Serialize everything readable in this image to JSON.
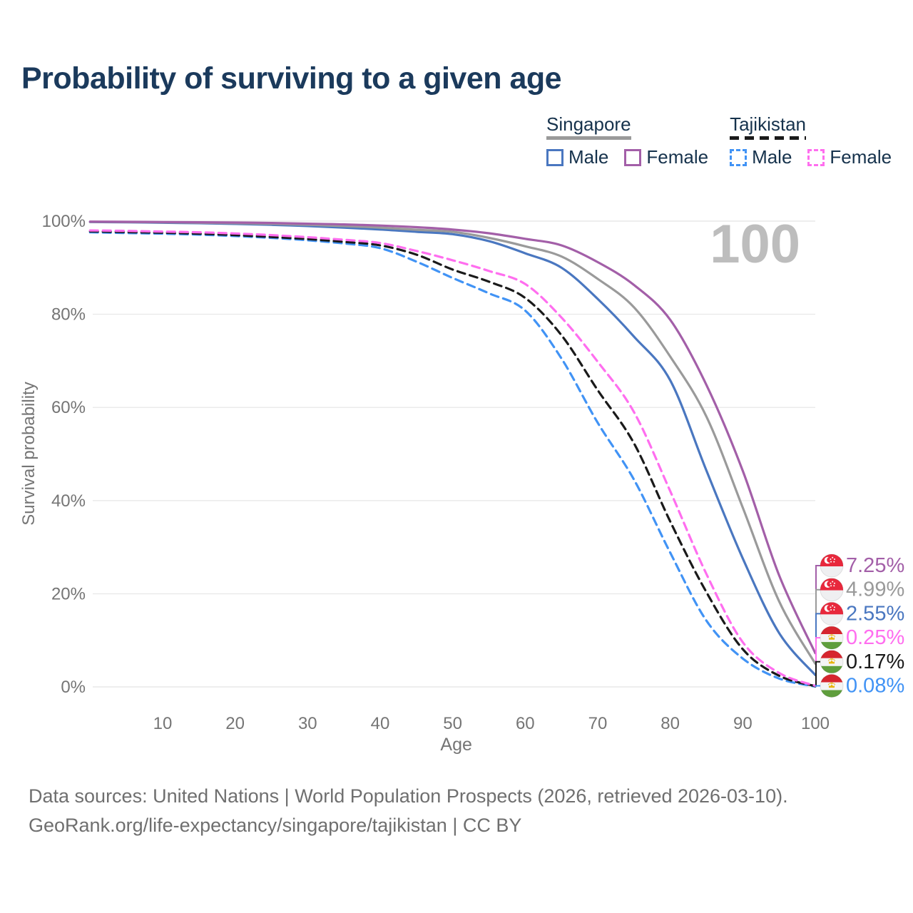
{
  "title": "Probability of surviving to a given age",
  "watermark_age": "100",
  "legend": {
    "groups": [
      {
        "country": "Singapore",
        "line_style": "solid",
        "underline_color": "#9a9a9a",
        "items": [
          {
            "label": "Male",
            "color": "#4a77c0"
          },
          {
            "label": "Female",
            "color": "#a35fa8"
          }
        ]
      },
      {
        "country": "Tajikistan",
        "line_style": "dashed",
        "underline_color": "#1a1a1a",
        "items": [
          {
            "label": "Male",
            "color": "#4193f5"
          },
          {
            "label": "Female",
            "color": "#ff6eef"
          }
        ]
      }
    ]
  },
  "chart_data": {
    "type": "line",
    "title": "Probability of surviving to a given age",
    "xlabel": "Age",
    "ylabel": "Survival probability",
    "xlim": [
      0,
      100
    ],
    "ylim": [
      0,
      100
    ],
    "grid": "horizontal-only",
    "x_ticks": [
      10,
      20,
      30,
      40,
      50,
      60,
      70,
      80,
      90,
      100
    ],
    "y_ticks": [
      "0%",
      "20%",
      "40%",
      "60%",
      "80%",
      "100%"
    ],
    "x": [
      0,
      5,
      10,
      15,
      20,
      25,
      30,
      35,
      40,
      45,
      50,
      55,
      60,
      65,
      70,
      75,
      80,
      85,
      90,
      95,
      100
    ],
    "series": [
      {
        "name": "Singapore Female",
        "country": "Singapore",
        "flag": "sg",
        "style": "solid",
        "color": "#a35fa8",
        "end_label": "7.25%",
        "values": [
          99.9,
          99.85,
          99.8,
          99.75,
          99.7,
          99.6,
          99.45,
          99.3,
          99.05,
          98.7,
          98.2,
          97.4,
          96.2,
          94.8,
          91.2,
          86.3,
          78.8,
          64.8,
          46.4,
          24.0,
          7.25
        ]
      },
      {
        "name": "Singapore Both sexes",
        "country": "Singapore",
        "flag": "sg",
        "style": "solid",
        "color": "#9a9a9a",
        "end_label": "4.99%",
        "values": [
          99.85,
          99.8,
          99.75,
          99.65,
          99.55,
          99.4,
          99.2,
          98.95,
          98.6,
          98.15,
          97.7,
          96.4,
          94.6,
          92.4,
          87.6,
          81.5,
          70.9,
          58.0,
          38.5,
          18.4,
          4.99
        ]
      },
      {
        "name": "Singapore Male",
        "country": "Singapore",
        "flag": "sg",
        "style": "solid",
        "color": "#4a77c0",
        "end_label": "2.55%",
        "values": [
          99.8,
          99.75,
          99.65,
          99.55,
          99.4,
          99.2,
          98.95,
          98.6,
          98.2,
          97.7,
          97.2,
          95.7,
          93.1,
          90.0,
          83.3,
          75.2,
          65.8,
          46.4,
          27.6,
          11.6,
          2.55
        ]
      },
      {
        "name": "Tajikistan Female",
        "country": "Tajikistan",
        "flag": "tj",
        "style": "dashed",
        "color": "#ff6eef",
        "end_label": "0.25%",
        "values": [
          98.0,
          97.9,
          97.75,
          97.6,
          97.35,
          97.0,
          96.55,
          96.0,
          95.3,
          93.6,
          91.6,
          89.3,
          86.5,
          79.3,
          69.8,
          59.0,
          42.0,
          24.2,
          9.6,
          3.0,
          0.25
        ]
      },
      {
        "name": "Tajikistan Both sexes",
        "country": "Tajikistan",
        "flag": "tj",
        "style": "dashed",
        "color": "#1a1a1a",
        "end_label": "0.17%",
        "values": [
          97.8,
          97.65,
          97.5,
          97.3,
          97.0,
          96.6,
          96.15,
          95.55,
          94.8,
          92.8,
          89.6,
          87.0,
          83.5,
          75.5,
          63.7,
          52.3,
          35.5,
          20.3,
          8.1,
          2.4,
          0.17
        ]
      },
      {
        "name": "Tajikistan Male",
        "country": "Tajikistan",
        "flag": "tj",
        "style": "dashed",
        "color": "#4193f5",
        "end_label": "0.08%",
        "values": [
          97.6,
          97.45,
          97.3,
          97.1,
          96.8,
          96.4,
          95.9,
          95.2,
          94.2,
          91.3,
          87.8,
          84.5,
          80.8,
          70.5,
          56.7,
          44.5,
          28.8,
          14.2,
          6.1,
          1.8,
          0.08
        ]
      }
    ]
  },
  "footer": {
    "line1": "Data sources: United Nations | World Population Prospects (2026, retrieved 2026-03-10).",
    "line2": "GeoRank.org/life-expectancy/singapore/tajikistan | CC BY"
  },
  "colors": {
    "title": "#1b3a5c",
    "axis_text": "#757575",
    "gridline": "#e9e9e9",
    "watermark": "#bdbdbd",
    "footer_text": "#6f6f6f",
    "legend_text": "#16324c"
  }
}
